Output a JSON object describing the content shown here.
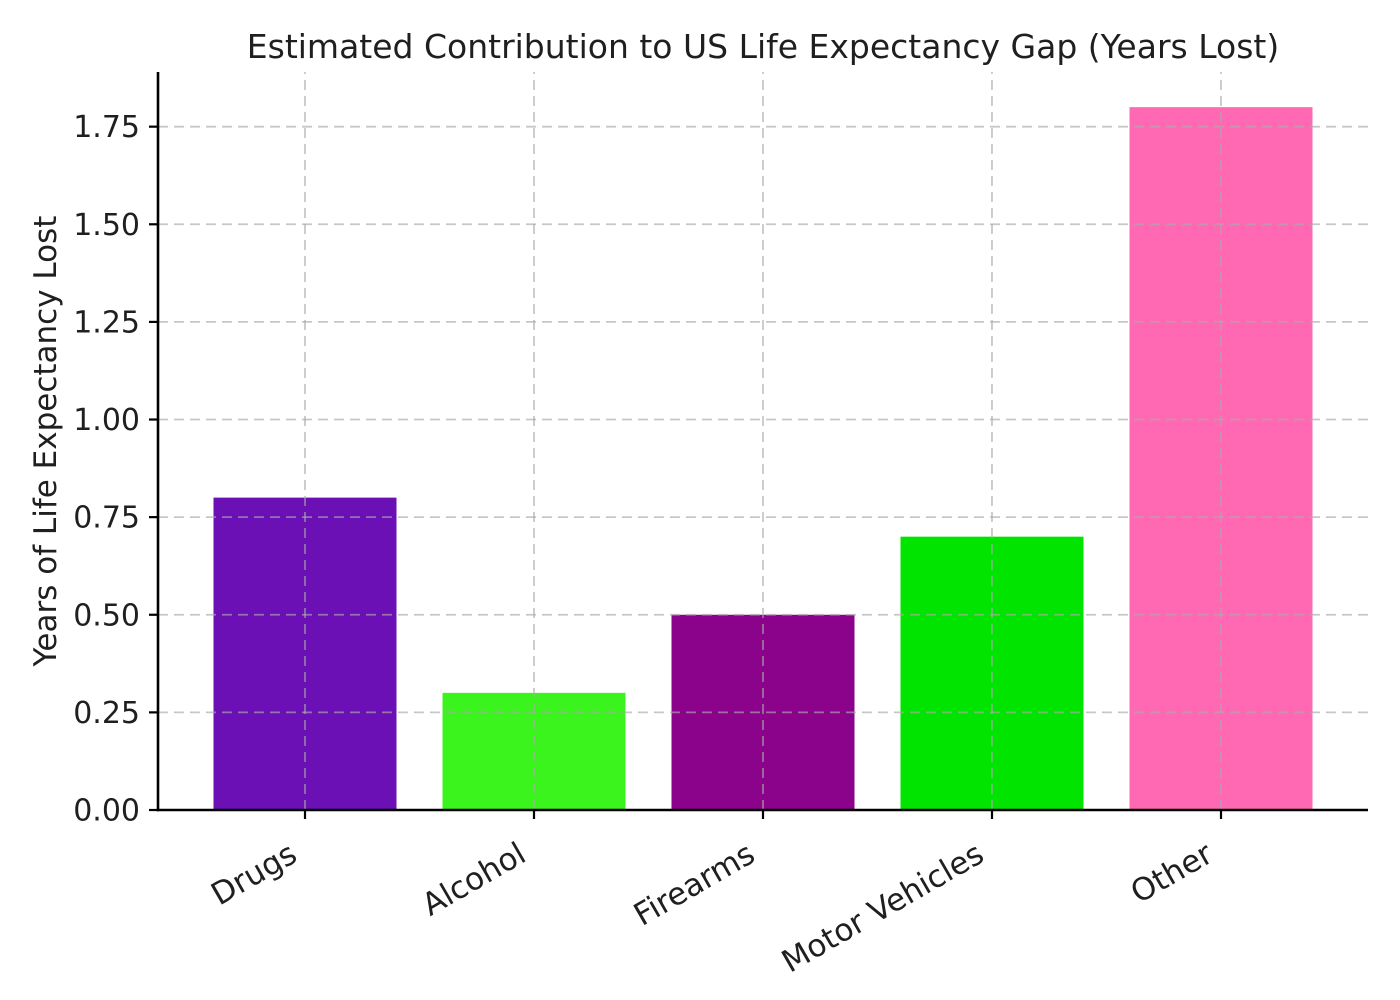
{
  "figure": {
    "background": "#ffffff"
  },
  "chart_data": {
    "type": "bar",
    "title": "Estimated Contribution to US Life Expectancy Gap (Years Lost)",
    "xlabel": "",
    "ylabel": "Years of Life Expectancy Lost",
    "categories": [
      "Drugs",
      "Alcohol",
      "Firearms",
      "Motor Vehicles",
      "Other"
    ],
    "values": [
      0.8,
      0.3,
      0.5,
      0.7,
      1.8
    ],
    "bar_colors": [
      "#6B10B5",
      "#3CF41D",
      "#8B038B",
      "#00E400",
      "#FF69B4"
    ],
    "ylim": [
      0,
      1.89
    ],
    "ytick_values": [
      0,
      0.25,
      0.5,
      0.75,
      1.0,
      1.25,
      1.5,
      1.75
    ],
    "ytick_labels": [
      "0.00",
      "0.25",
      "0.50",
      "0.75",
      "1.00",
      "1.25",
      "1.50",
      "1.75"
    ],
    "x_tick_rotation_deg": 30,
    "grid_on": true,
    "grid_style": "dashed",
    "grid_above_bars": true,
    "legend_position": "none",
    "colors": {
      "axis": "#000000",
      "text": "#1f1f1f",
      "grid": "#aaaaaa"
    }
  }
}
